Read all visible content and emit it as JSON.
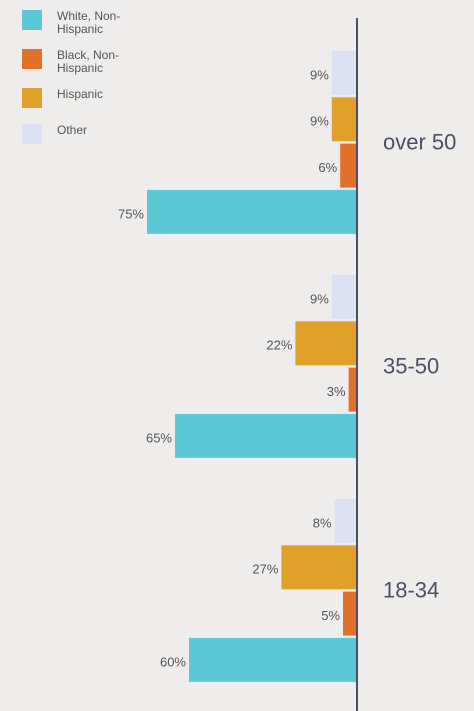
{
  "chart_data": {
    "type": "bar",
    "orientation": "horizontal",
    "categories": [
      "over 50",
      "35-50",
      "18-34"
    ],
    "series": [
      {
        "name": "White, Non-Hispanic",
        "color": "#5bc8d6",
        "values": [
          75,
          65,
          60
        ],
        "value_labels": [
          "75%",
          "65%",
          "60%"
        ]
      },
      {
        "name": "Black, Non-Hispanic",
        "color": "#e0702a",
        "values": [
          6,
          3,
          5
        ],
        "value_labels": [
          "6%",
          "3%",
          "5%"
        ]
      },
      {
        "name": "Hispanic",
        "color": "#e0a02a",
        "values": [
          9,
          22,
          27
        ],
        "value_labels": [
          "9%",
          "22%",
          "27%"
        ]
      },
      {
        "name": "Other",
        "color": "#dce2f4",
        "values": [
          9,
          9,
          8
        ],
        "value_labels": [
          "9%",
          "9%",
          "8%"
        ]
      }
    ]
  }
}
